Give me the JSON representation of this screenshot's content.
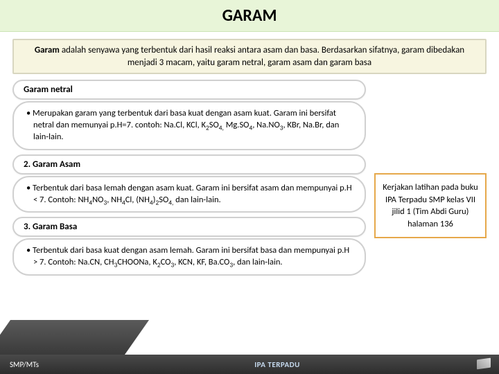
{
  "title": "GARAM",
  "intro": {
    "bold": "Garam",
    "rest": " adalah senyawa yang terbentuk dari hasil reaksi antara asam dan basa. Berdasarkan sifatnya, garam dibedakan menjadi 3 macam, yaitu garam netral, garam asam dan garam basa"
  },
  "sections": [
    {
      "heading": "Garam netral",
      "body_html": "• Merupakan garam yang terbentuk dari basa kuat dengan asam kuat. Garam ini bersifat netral dan memunyai p.H=7. contoh: Na.Cl, KCl, K<sub>2</sub>SO<sub>4,</sub> Mg.SO<sub>4</sub>, Na.NO<sub>3</sub>, KBr, Na.Br, dan lain-lain."
    },
    {
      "heading": "2. Garam Asam",
      "body_html": "• Terbentuk dari basa lemah dengan asam kuat. Garam ini bersifat asam dan mempunyai p.H < 7. Contoh: NH<sub>4</sub>NO<sub>3</sub>, NH<sub>4</sub>Cl, (NH<sub>4</sub>)<sub>2</sub>SO<sub>4,</sub> dan lain-lain."
    },
    {
      "heading": "3. Garam Basa",
      "body_html": "• Terbentuk dari basa kuat dengan asam lemah. Garam ini bersifat basa dan mempunyai p.H > 7. Contoh: Na.CN, CH<sub>3</sub>CHOONa, K<sub>2</sub>CO<sub>3</sub>, KCN, KF, Ba.CO<sub>3</sub>, dan lain-lain."
    }
  ],
  "note": "Kerjakan latihan pada buku IPA Terpadu SMP kelas VII jilid 1 (Tim Abdi Guru) halaman 136",
  "footer": {
    "left": "SMP/MTs",
    "center": "IPA TERPADU"
  }
}
